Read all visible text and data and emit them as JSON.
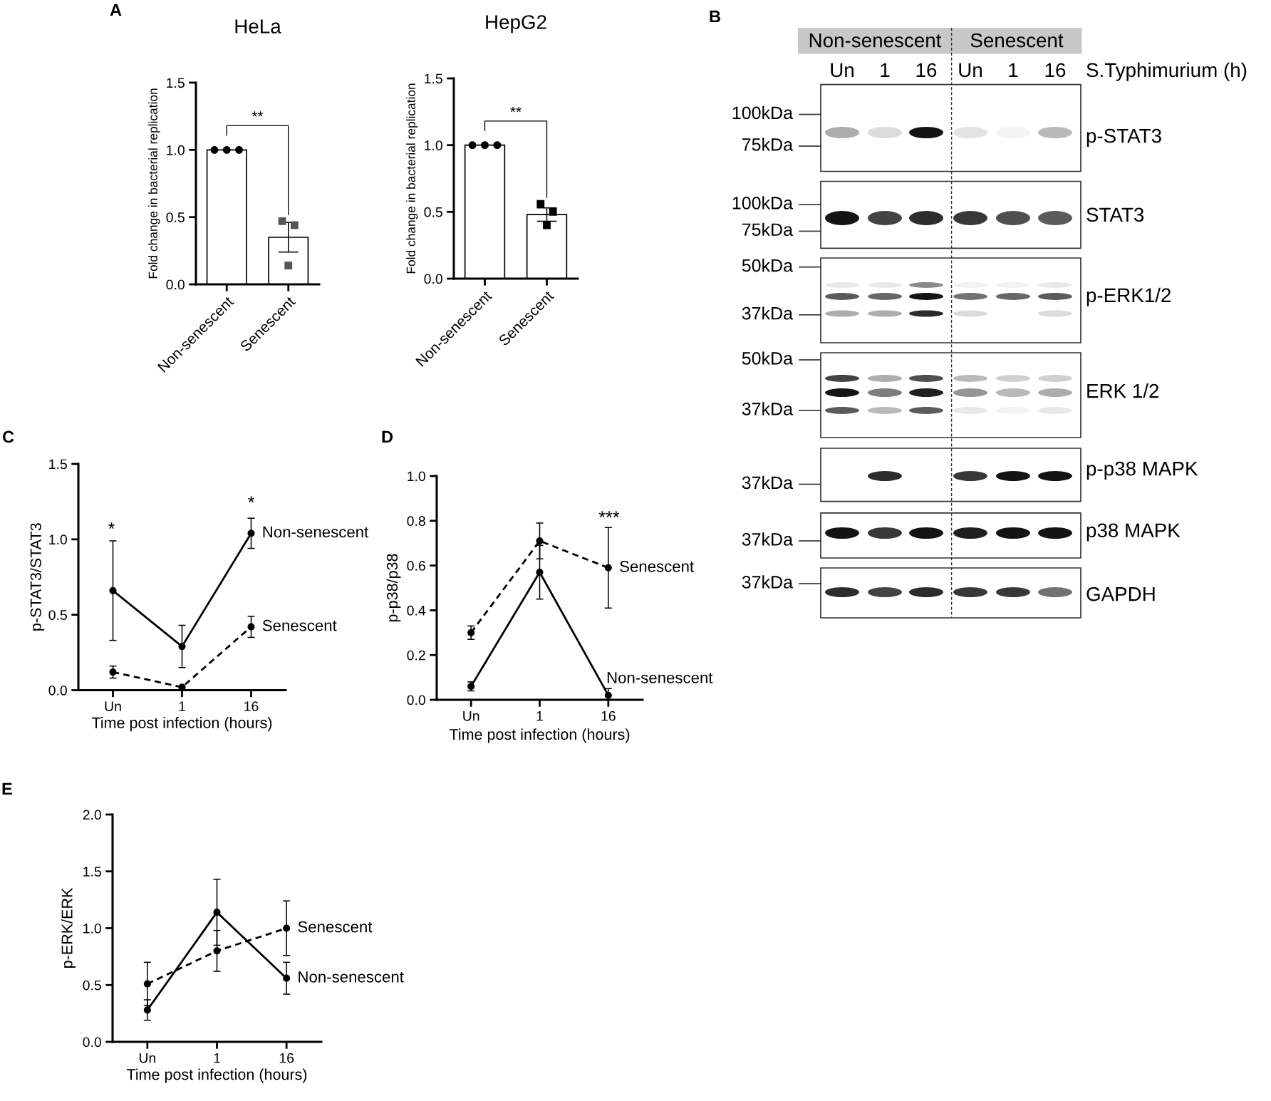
{
  "chart_data": [
    {
      "type": "bar",
      "title": "HeLa",
      "ylabel": "Fold change in bacterial replication",
      "categories": [
        "Non-senescent",
        "Senescent"
      ],
      "series": [
        {
          "type": "bar",
          "color": "#ffffff",
          "values": [
            1.0,
            0.35
          ],
          "errors": [
            null,
            0.11
          ]
        },
        {
          "type": "scatter",
          "marker": "circle",
          "color": "#000000",
          "x": [
            "Non-senescent",
            "Non-senescent",
            "Non-senescent"
          ],
          "values": [
            1.0,
            1.0,
            1.0
          ]
        },
        {
          "type": "scatter",
          "marker": "square",
          "color": "#555555",
          "x": [
            "Senescent",
            "Senescent",
            "Senescent"
          ],
          "values": [
            0.47,
            0.14,
            0.44
          ]
        }
      ],
      "ylim": [
        0,
        1.5
      ],
      "yticks": [
        {
          "value": 0,
          "label": "0.0"
        },
        0.5,
        {
          "value": 1,
          "label": "1.0"
        },
        1.5
      ],
      "annotations": [
        "A",
        "**"
      ]
    },
    {
      "type": "bar",
      "title": "HepG2",
      "ylabel": "Fold change in bacterial replication",
      "categories": [
        "Non-senescent",
        "Senescent"
      ],
      "series": [
        {
          "type": "bar",
          "color": "#ffffff",
          "values": [
            1.0,
            0.48
          ],
          "errors": [
            null,
            0.05
          ]
        },
        {
          "type": "scatter",
          "marker": "circle",
          "color": "#000000",
          "x": [
            "Non-senescent",
            "Non-senescent",
            "Non-senescent"
          ],
          "values": [
            1.0,
            1.0,
            1.0
          ]
        },
        {
          "type": "scatter",
          "marker": "square",
          "color": "#000000",
          "x": [
            "Senescent",
            "Senescent",
            "Senescent"
          ],
          "values": [
            0.56,
            0.4,
            0.5
          ]
        }
      ],
      "ylim": [
        0,
        1.5
      ],
      "yticks": [
        {
          "value": 0,
          "label": "0.0"
        },
        0.5,
        {
          "value": 1,
          "label": "1.0"
        },
        1.5
      ],
      "annotations": [
        "**"
      ]
    },
    {
      "type": "other",
      "categories": [
        "Un",
        "1",
        "16",
        "Un",
        "1",
        "16"
      ],
      "xlabel": "S.Typhimurium (h)",
      "y_categories": [
        "p-STAT3",
        "STAT3",
        "p-ERK1/2",
        "ERK 1/2",
        "p-p38 MAPK",
        "p38 MAPK",
        "GAPDH"
      ],
      "annotations": [
        "B",
        "Non-senescent",
        "Senescent",
        "100kDa",
        "75kDa",
        "100kDa",
        "75kDa",
        "50kDa",
        "37kDa",
        "50kDa",
        "37kDa",
        "37kDa",
        "37kDa",
        "37kDa"
      ]
    },
    {
      "type": "line",
      "categories": [
        "Un",
        "1",
        "16"
      ],
      "xlabel": "Time post infection (hours)",
      "ylabel": "p-STAT3/STAT3",
      "marker": "circle",
      "series": [
        {
          "name": "Non-senescent",
          "color": "#000000",
          "line_style": "solid",
          "values": [
            0.66,
            0.29,
            1.04
          ],
          "errors": [
            0.33,
            0.14,
            0.1
          ]
        },
        {
          "name": "Senescent",
          "color": "#000000",
          "line_style": "dashed",
          "values": [
            0.12,
            0.02,
            0.42
          ],
          "errors": [
            0.04,
            null,
            0.07
          ]
        }
      ],
      "ylim": [
        0,
        1.5
      ],
      "yticks": [
        {
          "value": 0,
          "label": "0.0"
        },
        0.5,
        {
          "value": 1,
          "label": "1.0"
        },
        1.5
      ],
      "annotations": [
        "C",
        "*",
        "*"
      ]
    },
    {
      "type": "line",
      "categories": [
        "Un",
        "1",
        "16"
      ],
      "xlabel": "Time post infection (hours)",
      "ylabel": "p-p38/p38",
      "marker": "circle",
      "series": [
        {
          "name": "Non-senescent",
          "color": "#000000",
          "line_style": "solid",
          "values": [
            0.06,
            0.57,
            0.02
          ],
          "errors": [
            0.02,
            0.12,
            [
              0,
              0.05
            ]
          ]
        },
        {
          "name": "Senescent",
          "color": "#000000",
          "line_style": "dashed",
          "values": [
            0.3,
            0.71,
            0.59
          ],
          "errors": [
            0.03,
            0.08,
            0.18
          ]
        }
      ],
      "ylim": [
        0,
        1.0
      ],
      "yticks": [
        {
          "value": 0,
          "label": "0.0"
        },
        0.2,
        0.4,
        0.6,
        0.8,
        {
          "value": 1,
          "label": "1.0"
        }
      ],
      "annotations": [
        "D",
        "***"
      ]
    },
    {
      "type": "line",
      "categories": [
        "Un",
        "1",
        "16"
      ],
      "xlabel": "Time post infection (hours)",
      "ylabel": "p-ERK/ERK",
      "marker": "circle",
      "series": [
        {
          "name": "Non-senescent",
          "color": "#000000",
          "line_style": "solid",
          "values": [
            0.28,
            1.14,
            0.56
          ],
          "errors": [
            0.09,
            0.29,
            0.14
          ]
        },
        {
          "name": "Senescent",
          "color": "#000000",
          "line_style": "dashed",
          "values": [
            0.51,
            0.8,
            1.0
          ],
          "errors": [
            0.19,
            0.18,
            0.24
          ]
        }
      ],
      "ylim": [
        0,
        2.0
      ],
      "yticks": [
        {
          "value": 0,
          "label": "0.0"
        },
        0.5,
        {
          "value": 1,
          "label": "1.0"
        },
        1.5,
        {
          "value": 2,
          "label": "2.0"
        }
      ],
      "annotations": [
        "E"
      ]
    }
  ]
}
